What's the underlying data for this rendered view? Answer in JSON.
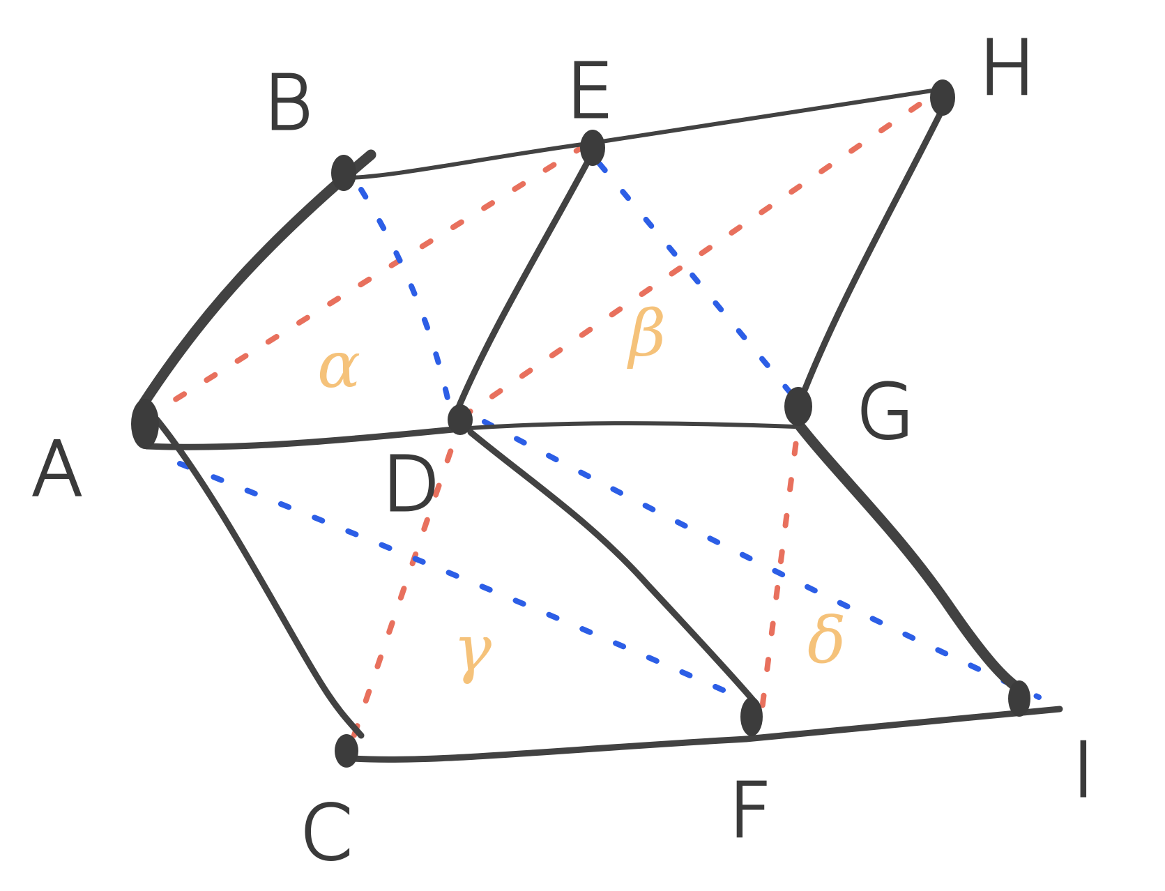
{
  "points": {
    "A": "A",
    "B": "B",
    "C": "C",
    "D": "D",
    "E": "E",
    "F": "F",
    "G": "G",
    "H": "H",
    "I": "I"
  },
  "regions": {
    "alpha": "α",
    "beta": "β",
    "gamma": "γ",
    "delta": "δ"
  },
  "colors": {
    "lines": "#424242",
    "diagonal_red": "#e8705d",
    "diagonal_blue": "#2c5ee6",
    "region_labels": "#f5c27a"
  }
}
